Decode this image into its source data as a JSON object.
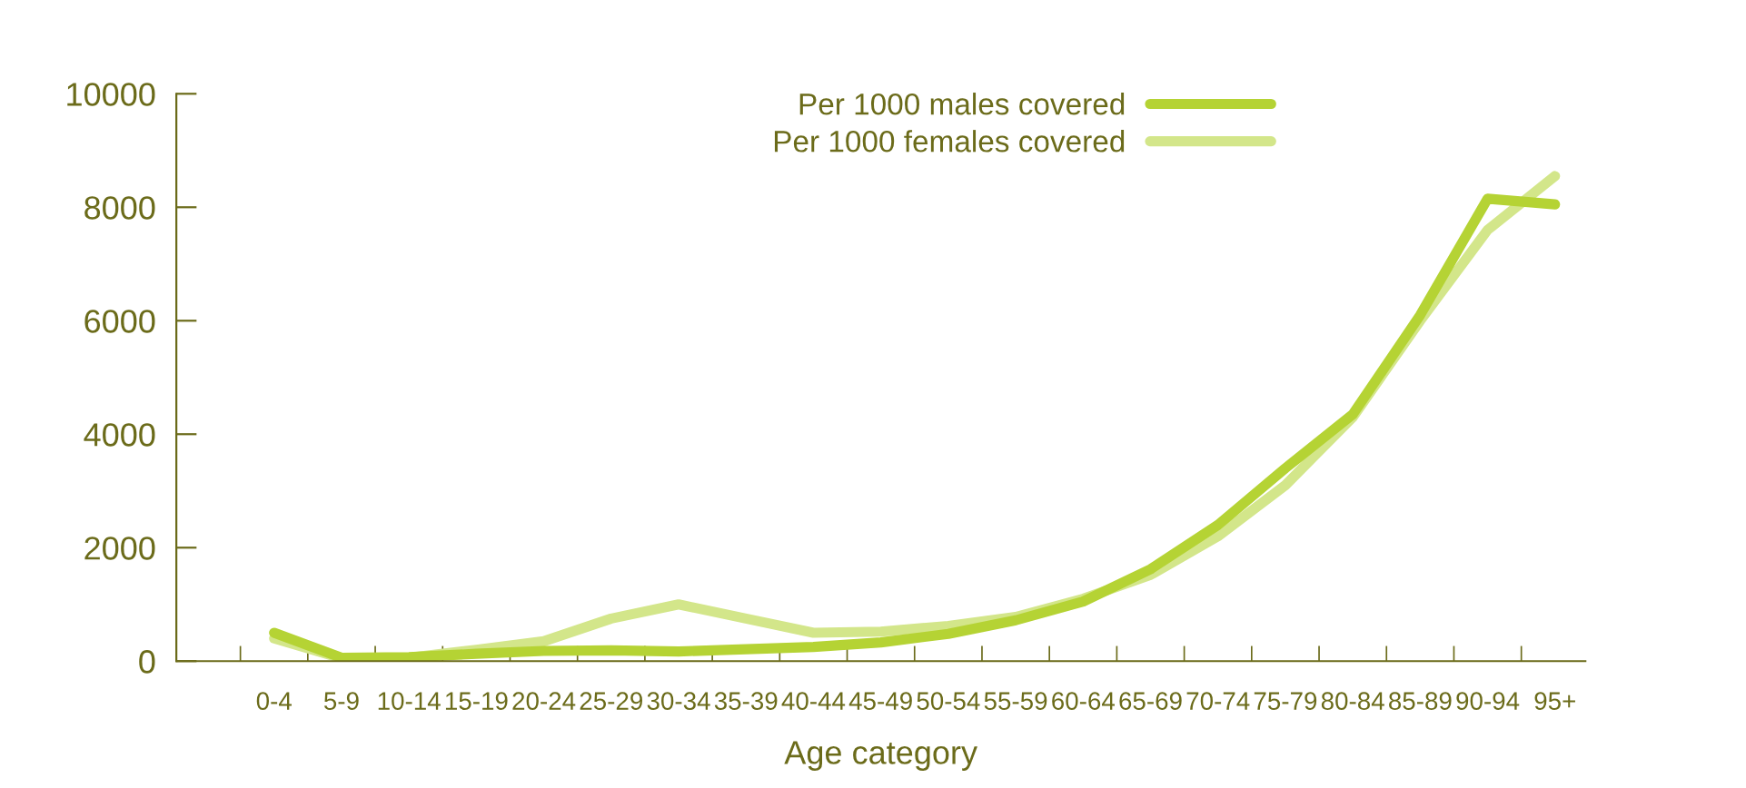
{
  "chart_data": {
    "type": "line",
    "xlabel": "Age category",
    "categories": [
      "0-4",
      "5-9",
      "10-14",
      "15-19",
      "20-24",
      "25-29",
      "30-34",
      "35-39",
      "40-44",
      "45-49",
      "50-54",
      "55-59",
      "60-64",
      "65-69",
      "70-74",
      "75-79",
      "80-84",
      "85-89",
      "90-94",
      "95+"
    ],
    "series": [
      {
        "name": "Per 1000 males covered",
        "color": "#b5d334",
        "values": [
          500,
          60,
          70,
          130,
          180,
          190,
          170,
          210,
          250,
          330,
          480,
          720,
          1050,
          1620,
          2400,
          3400,
          4350,
          6100,
          8150,
          8050
        ]
      },
      {
        "name": "Per 1000 females covered",
        "color": "#d3e68a",
        "values": [
          400,
          50,
          60,
          200,
          350,
          750,
          1000,
          750,
          500,
          520,
          620,
          780,
          1100,
          1520,
          2200,
          3100,
          4300,
          6000,
          7600,
          8550
        ]
      }
    ],
    "ylim": [
      0,
      10000
    ],
    "yticks": [
      0,
      2000,
      4000,
      6000,
      8000,
      10000
    ],
    "grid": false,
    "legend": "top",
    "marker": "none",
    "line_style": "solid"
  }
}
